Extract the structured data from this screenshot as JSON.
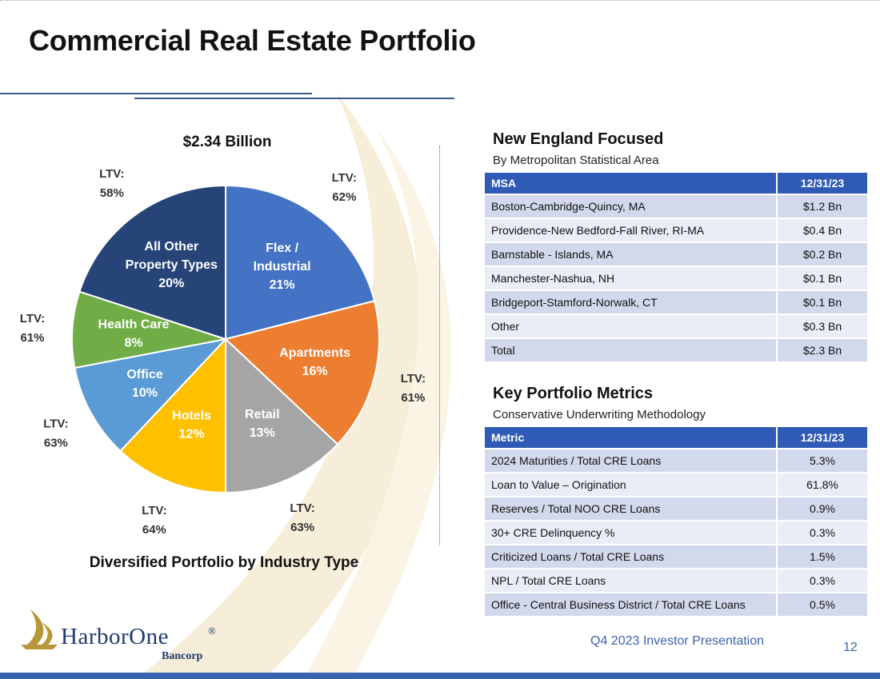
{
  "title": "Commercial Real Estate Portfolio",
  "colors": {
    "accent": "#2f5bb6",
    "watermark": "#f6eed8",
    "row_odd": "#d3d9ec",
    "row_even": "#eaedf6",
    "footer": "#3a62b0"
  },
  "pie": {
    "total": "$2.34 Billion",
    "caption": "Diversified Portfolio by Industry Type"
  },
  "chart_data": {
    "type": "pie",
    "title": "$2.34 Billion",
    "caption": "Diversified Portfolio by Industry Type",
    "slices": [
      {
        "name_lines": [
          "Flex /",
          "Industrial"
        ],
        "pct_label": "21%",
        "value": 21,
        "ltv": [
          "LTV:",
          "62%"
        ],
        "color": "#4472c4"
      },
      {
        "name_lines": [
          "Apartments"
        ],
        "pct_label": "16%",
        "value": 16,
        "ltv": [
          "LTV:",
          "61%"
        ],
        "color": "#ed7d31"
      },
      {
        "name_lines": [
          "Retail"
        ],
        "pct_label": "13%",
        "value": 13,
        "ltv": [
          "LTV:",
          "63%"
        ],
        "color": "#a5a5a5"
      },
      {
        "name_lines": [
          "Hotels"
        ],
        "pct_label": "12%",
        "value": 12,
        "ltv": [
          "LTV:",
          "64%"
        ],
        "color": "#ffc000"
      },
      {
        "name_lines": [
          "Office"
        ],
        "pct_label": "10%",
        "value": 10,
        "ltv": [
          "LTV:",
          "63%"
        ],
        "color": "#5b9bd5"
      },
      {
        "name_lines": [
          "Health Care"
        ],
        "pct_label": "8%",
        "value": 8,
        "ltv": [
          "LTV:",
          "61%"
        ],
        "color": "#70ad47"
      },
      {
        "name_lines": [
          "All Other",
          "Property Types"
        ],
        "pct_label": "20%",
        "value": 20,
        "ltv": [
          "LTV:",
          "58%"
        ],
        "color": "#264478"
      }
    ]
  },
  "msa_section": {
    "heading": "New England Focused",
    "subheading": "By Metropolitan Statistical Area",
    "col_msa": "MSA",
    "col_date": "12/31/23",
    "rows": [
      {
        "label": "Boston-Cambridge-Quincy, MA",
        "value": "$1.2 Bn"
      },
      {
        "label": "Providence-New Bedford-Fall River, RI-MA",
        "value": "$0.4 Bn"
      },
      {
        "label": "Barnstable - Islands, MA",
        "value": "$0.2 Bn"
      },
      {
        "label": "Manchester-Nashua, NH",
        "value": "$0.1 Bn"
      },
      {
        "label": "Bridgeport-Stamford-Norwalk, CT",
        "value": "$0.1 Bn"
      },
      {
        "label": "Other",
        "value": "$0.3 Bn"
      },
      {
        "label": "Total",
        "value": "$2.3 Bn"
      }
    ]
  },
  "metrics_section": {
    "heading": "Key Portfolio Metrics",
    "subheading": "Conservative Underwriting Methodology",
    "col_metric": "Metric",
    "col_date": "12/31/23",
    "rows": [
      {
        "label": "2024 Maturities / Total CRE Loans",
        "value": "5.3%"
      },
      {
        "label": "Loan to Value – Origination",
        "value": "61.8%"
      },
      {
        "label": "Reserves / Total NOO CRE Loans",
        "value": "0.9%"
      },
      {
        "label": "30+ CRE Delinquency %",
        "value": "0.3%"
      },
      {
        "label": "Criticized Loans / Total CRE Loans",
        "value": "1.5%"
      },
      {
        "label": "NPL / Total CRE Loans",
        "value": "0.3%"
      },
      {
        "label": "Office - Central Business District / Total CRE Loans",
        "value": "0.5%"
      }
    ]
  },
  "logo": {
    "name": "HarborOne",
    "registered": "®",
    "sub": "Bancorp"
  },
  "footer": {
    "presentation": "Q4 2023 Investor Presentation",
    "page": "12"
  }
}
